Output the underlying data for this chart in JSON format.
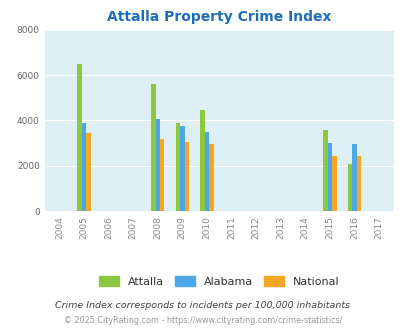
{
  "title": "Attalla Property Crime Index",
  "title_color": "#1a6fbd",
  "years": [
    2004,
    2005,
    2006,
    2007,
    2008,
    2009,
    2010,
    2011,
    2012,
    2013,
    2014,
    2015,
    2016,
    2017
  ],
  "attalla": [
    null,
    6500,
    null,
    null,
    5600,
    3900,
    4450,
    null,
    null,
    null,
    null,
    3600,
    2100,
    null
  ],
  "alabama": [
    null,
    3900,
    null,
    null,
    4050,
    3750,
    3500,
    null,
    null,
    null,
    null,
    3000,
    2950,
    null
  ],
  "national": [
    null,
    3450,
    null,
    null,
    3200,
    3050,
    2950,
    null,
    null,
    null,
    null,
    2450,
    2450,
    null
  ],
  "attalla_color": "#8dc63f",
  "alabama_color": "#4da6e8",
  "national_color": "#f5a623",
  "bg_color": "#ddeef5",
  "ylim": [
    0,
    8000
  ],
  "yticks": [
    0,
    2000,
    4000,
    6000,
    8000
  ],
  "grid_color": "#ffffff",
  "note": "Crime Index corresponds to incidents per 100,000 inhabitants",
  "note_color": "#444444",
  "copyright": "© 2025 CityRating.com - https://www.cityrating.com/crime-statistics/",
  "copyright_color": "#999999",
  "bar_width": 0.18
}
